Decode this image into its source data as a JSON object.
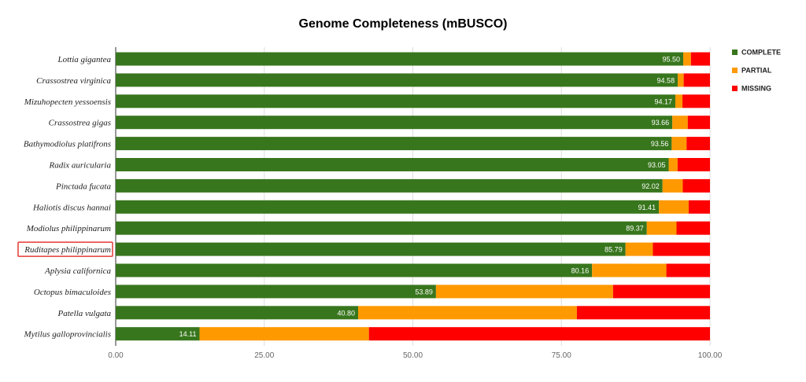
{
  "chart_data": {
    "type": "bar",
    "orientation": "horizontal",
    "stacked": true,
    "title": "Genome Completeness (mBUSCO)",
    "categories": [
      "Lottia gigantea",
      "Crassostrea virginica",
      "Mizuhopecten yessoensis",
      "Crassostrea gigas",
      "Bathymodiolus platifrons",
      "Radix auricularia",
      "Pinctada fucata",
      "Haliotis discus hannai",
      "Modiolus philippinarum",
      "Ruditapes philippinarum",
      "Aplysia californica",
      "Octopus bimaculoides",
      "Patella vulgata",
      "Mytilus galloprovincialis"
    ],
    "highlighted_category": "Ruditapes philippinarum",
    "series": [
      {
        "name": "COMPLETE",
        "color": "#38761d",
        "values": [
          95.5,
          94.58,
          94.17,
          93.66,
          93.56,
          93.05,
          92.02,
          91.41,
          89.37,
          85.79,
          80.16,
          53.89,
          40.8,
          14.11
        ],
        "labels": [
          "95.50",
          "94.58",
          "94.17",
          "93.66",
          "93.56",
          "93.05",
          "92.02",
          "91.41",
          "89.37",
          "85.79",
          "80.16",
          "53.89",
          "40.80",
          "14.11"
        ]
      },
      {
        "name": "PARTIAL",
        "color": "#ff9900",
        "values": [
          1.3,
          1.0,
          1.2,
          2.6,
          2.5,
          1.5,
          3.4,
          5.0,
          5.0,
          4.6,
          12.5,
          29.8,
          36.8,
          28.5
        ]
      },
      {
        "name": "MISSING",
        "color": "#ff0000",
        "values": [
          3.2,
          4.42,
          4.63,
          3.74,
          3.94,
          5.45,
          4.58,
          3.59,
          5.63,
          9.61,
          7.34,
          16.31,
          22.4,
          57.39
        ]
      }
    ],
    "xlim": [
      0,
      100
    ],
    "xticks": [
      "0.00",
      "25.00",
      "50.00",
      "75.00",
      "100.00"
    ],
    "xtick_values": [
      0,
      25,
      50,
      75,
      100
    ],
    "xlabel": "",
    "ylabel": "",
    "legend_position": "right",
    "grid": "vertical"
  }
}
